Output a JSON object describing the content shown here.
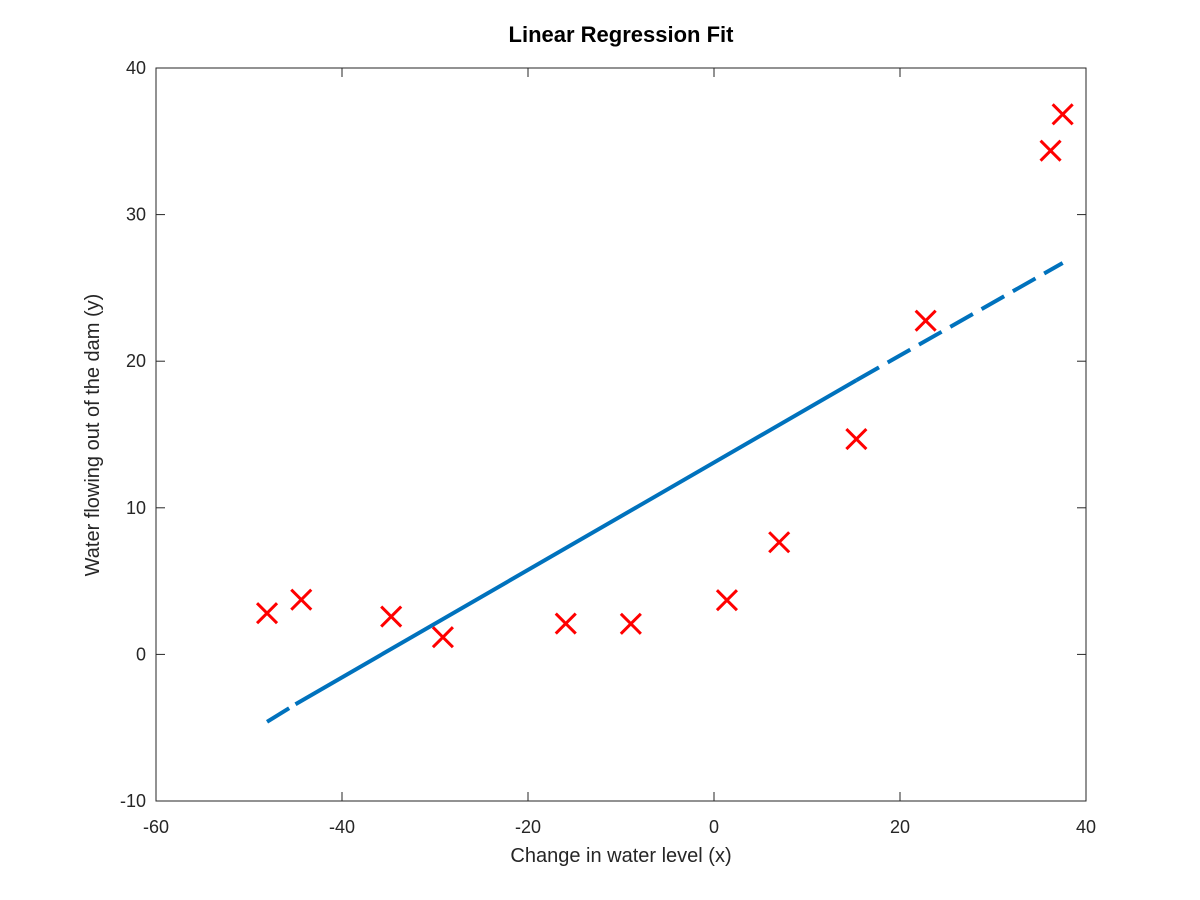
{
  "chart_data": {
    "type": "scatter",
    "title": "Linear Regression Fit",
    "xlabel": "Change in water level (x)",
    "ylabel": "Water flowing out of the dam (y)",
    "xlim": [
      -60,
      40
    ],
    "ylim": [
      -10,
      40
    ],
    "xticks": [
      -60,
      -40,
      -20,
      0,
      20,
      40
    ],
    "yticks": [
      -10,
      0,
      10,
      20,
      30,
      40
    ],
    "grid": false,
    "series": [
      {
        "kind": "scatter",
        "marker": "x",
        "color": "#ff0000",
        "x": [
          -48.06,
          -44.38,
          -34.71,
          -29.15,
          -15.94,
          -8.94,
          1.39,
          7.01,
          15.31,
          22.76,
          36.19,
          37.49
        ],
        "y": [
          2.81,
          3.73,
          2.58,
          1.17,
          2.1,
          2.09,
          3.7,
          7.65,
          14.69,
          22.76,
          34.36,
          36.84
        ]
      },
      {
        "kind": "line",
        "color": "#0072bd",
        "segments": [
          {
            "style": "dashed",
            "x": [
              -48.06,
              -45.0
            ],
            "y": [
              -4.6,
              -3.4
            ]
          },
          {
            "style": "solid",
            "x": [
              -45.0,
              15.31
            ],
            "y": [
              -3.4,
              18.7
            ]
          },
          {
            "style": "dashed",
            "x": [
              15.31,
              37.49
            ],
            "y": [
              18.7,
              26.7
            ]
          }
        ]
      }
    ]
  }
}
